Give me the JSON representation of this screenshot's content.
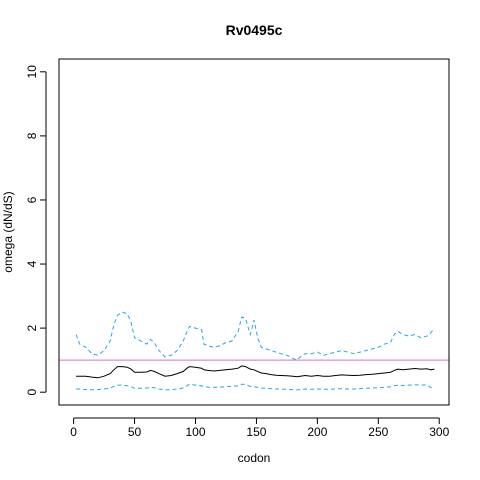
{
  "chart_data": {
    "type": "line",
    "title": "Rv0495c",
    "xlabel": "codon",
    "ylabel": "omega (dN/dS)",
    "xlim": [
      -12,
      308
    ],
    "ylim": [
      -0.4,
      10.4
    ],
    "xticks": [
      0,
      50,
      100,
      150,
      200,
      250,
      300
    ],
    "yticks": [
      0,
      2,
      4,
      6,
      8,
      10
    ],
    "x_tick_labels": [
      "0",
      "50",
      "100",
      "150",
      "200",
      "250",
      "300"
    ],
    "y_tick_labels": [
      "0",
      "2",
      "4",
      "6",
      "8",
      "10"
    ],
    "grid": false,
    "legend": "none",
    "reference_line": {
      "y": 1,
      "color": "#d070d0"
    },
    "series": [
      {
        "style": "dashed",
        "color": "#29a8e0",
        "x": [
          2,
          5,
          10,
          15,
          20,
          25,
          30,
          33,
          36,
          40,
          44,
          47,
          50,
          55,
          60,
          63,
          66,
          70,
          75,
          80,
          85,
          90,
          93,
          95,
          100,
          105,
          107,
          110,
          115,
          120,
          125,
          130,
          135,
          138,
          141,
          145,
          148,
          151,
          154,
          158,
          162,
          166,
          170,
          175,
          180,
          183,
          186,
          190,
          195,
          200,
          205,
          210,
          215,
          220,
          225,
          230,
          235,
          240,
          245,
          250,
          255,
          260,
          263,
          266,
          270,
          275,
          280,
          285,
          290,
          293,
          296
        ],
        "y": [
          1.8,
          1.5,
          1.4,
          1.2,
          1.15,
          1.3,
          1.6,
          2.1,
          2.4,
          2.5,
          2.45,
          2.2,
          1.7,
          1.6,
          1.5,
          1.65,
          1.55,
          1.3,
          1.1,
          1.15,
          1.3,
          1.6,
          1.9,
          2.05,
          2.0,
          1.95,
          1.5,
          1.45,
          1.4,
          1.45,
          1.55,
          1.6,
          1.9,
          2.35,
          2.3,
          1.8,
          2.25,
          1.7,
          1.4,
          1.35,
          1.3,
          1.25,
          1.2,
          1.15,
          1.05,
          1.0,
          1.1,
          1.2,
          1.2,
          1.25,
          1.15,
          1.2,
          1.25,
          1.3,
          1.25,
          1.2,
          1.25,
          1.3,
          1.35,
          1.4,
          1.5,
          1.55,
          1.8,
          1.9,
          1.8,
          1.75,
          1.8,
          1.7,
          1.75,
          1.85,
          2.0
        ]
      },
      {
        "style": "solid",
        "color": "#000000",
        "x": [
          2,
          5,
          10,
          15,
          20,
          25,
          30,
          33,
          36,
          40,
          44,
          47,
          50,
          55,
          60,
          63,
          66,
          70,
          75,
          80,
          85,
          90,
          93,
          95,
          100,
          105,
          107,
          110,
          115,
          120,
          125,
          130,
          135,
          138,
          141,
          145,
          148,
          151,
          154,
          158,
          162,
          166,
          170,
          175,
          180,
          183,
          186,
          190,
          195,
          200,
          205,
          210,
          215,
          220,
          225,
          230,
          235,
          240,
          245,
          250,
          255,
          260,
          263,
          266,
          270,
          275,
          280,
          285,
          290,
          293,
          296
        ],
        "y": [
          0.5,
          0.5,
          0.5,
          0.47,
          0.45,
          0.5,
          0.58,
          0.7,
          0.8,
          0.8,
          0.78,
          0.72,
          0.62,
          0.62,
          0.63,
          0.68,
          0.65,
          0.58,
          0.5,
          0.52,
          0.58,
          0.65,
          0.75,
          0.8,
          0.78,
          0.75,
          0.7,
          0.68,
          0.66,
          0.68,
          0.7,
          0.72,
          0.75,
          0.82,
          0.8,
          0.72,
          0.7,
          0.65,
          0.6,
          0.58,
          0.55,
          0.53,
          0.52,
          0.51,
          0.5,
          0.48,
          0.5,
          0.52,
          0.5,
          0.52,
          0.5,
          0.5,
          0.52,
          0.54,
          0.53,
          0.52,
          0.53,
          0.55,
          0.56,
          0.58,
          0.6,
          0.62,
          0.68,
          0.72,
          0.7,
          0.72,
          0.74,
          0.72,
          0.73,
          0.7,
          0.72
        ]
      },
      {
        "style": "dashed",
        "color": "#29a8e0",
        "x": [
          2,
          5,
          10,
          15,
          20,
          25,
          30,
          33,
          36,
          40,
          44,
          47,
          50,
          55,
          60,
          63,
          66,
          70,
          75,
          80,
          85,
          90,
          93,
          95,
          100,
          105,
          107,
          110,
          115,
          120,
          125,
          130,
          135,
          138,
          141,
          145,
          148,
          151,
          154,
          158,
          162,
          166,
          170,
          175,
          180,
          183,
          186,
          190,
          195,
          200,
          205,
          210,
          215,
          220,
          225,
          230,
          235,
          240,
          245,
          250,
          255,
          260,
          263,
          266,
          270,
          275,
          280,
          285,
          290,
          293,
          296
        ],
        "y": [
          0.1,
          0.1,
          0.08,
          0.07,
          0.08,
          0.1,
          0.13,
          0.18,
          0.22,
          0.22,
          0.2,
          0.17,
          0.12,
          0.12,
          0.13,
          0.15,
          0.14,
          0.1,
          0.07,
          0.08,
          0.1,
          0.13,
          0.2,
          0.25,
          0.22,
          0.2,
          0.17,
          0.16,
          0.15,
          0.16,
          0.17,
          0.18,
          0.2,
          0.25,
          0.24,
          0.18,
          0.17,
          0.15,
          0.13,
          0.12,
          0.11,
          0.1,
          0.1,
          0.09,
          0.08,
          0.07,
          0.08,
          0.1,
          0.09,
          0.1,
          0.09,
          0.09,
          0.1,
          0.11,
          0.1,
          0.1,
          0.11,
          0.12,
          0.13,
          0.14,
          0.15,
          0.17,
          0.2,
          0.22,
          0.21,
          0.22,
          0.23,
          0.22,
          0.23,
          0.15,
          0.08
        ]
      }
    ]
  }
}
